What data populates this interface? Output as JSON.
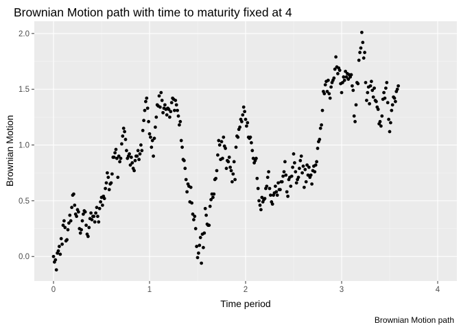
{
  "chart_data": {
    "type": "scatter",
    "title": "Brownian Motion path with time to maturity fixed at 4",
    "xlabel": "Time period",
    "ylabel": "Brownian Motion",
    "caption": "Brownian Motion path",
    "xlim": [
      -0.2,
      4.2
    ],
    "ylim": [
      -0.22,
      2.11
    ],
    "x_ticks": [
      0,
      1,
      2,
      3,
      4
    ],
    "x_tick_labels": [
      "0",
      "1",
      "2",
      "3",
      "4"
    ],
    "y_ticks": [
      0.0,
      0.5,
      1.0,
      1.5,
      2.0
    ],
    "y_tick_labels": [
      "0.0",
      "0.5",
      "1.0",
      "1.5",
      "2.0"
    ],
    "grid": true,
    "colors": {
      "panel_background": "#EBEBEB",
      "grid_major": "#FFFFFF",
      "grid_minor": "#F5F5F5",
      "point": "#000000",
      "tick_label": "#4D4D4D",
      "tick_mark": "#333333"
    },
    "points": [
      [
        0.0,
        0.0
      ],
      [
        0.01,
        -0.05
      ],
      [
        0.02,
        -0.03
      ],
      [
        0.03,
        -0.12
      ],
      [
        0.04,
        0.03
      ],
      [
        0.05,
        0.05
      ],
      [
        0.06,
        0.09
      ],
      [
        0.07,
        0.02
      ],
      [
        0.08,
        0.16
      ],
      [
        0.09,
        0.11
      ],
      [
        0.1,
        0.28
      ],
      [
        0.11,
        0.32
      ],
      [
        0.12,
        0.26
      ],
      [
        0.13,
        0.14
      ],
      [
        0.14,
        0.15
      ],
      [
        0.15,
        0.24
      ],
      [
        0.16,
        0.3
      ],
      [
        0.17,
        0.37
      ],
      [
        0.18,
        0.32
      ],
      [
        0.19,
        0.44
      ],
      [
        0.2,
        0.55
      ],
      [
        0.21,
        0.56
      ],
      [
        0.22,
        0.46
      ],
      [
        0.23,
        0.38
      ],
      [
        0.24,
        0.36
      ],
      [
        0.25,
        0.42
      ],
      [
        0.26,
        0.4
      ],
      [
        0.27,
        0.25
      ],
      [
        0.28,
        0.21
      ],
      [
        0.29,
        0.24
      ],
      [
        0.3,
        0.32
      ],
      [
        0.31,
        0.38
      ],
      [
        0.32,
        0.41
      ],
      [
        0.33,
        0.4
      ],
      [
        0.34,
        0.28
      ],
      [
        0.35,
        0.2
      ],
      [
        0.36,
        0.18
      ],
      [
        0.37,
        0.26
      ],
      [
        0.38,
        0.34
      ],
      [
        0.39,
        0.39
      ],
      [
        0.4,
        0.33
      ],
      [
        0.41,
        0.36
      ],
      [
        0.42,
        0.36
      ],
      [
        0.43,
        0.31
      ],
      [
        0.44,
        0.39
      ],
      [
        0.45,
        0.44
      ],
      [
        0.46,
        0.36
      ],
      [
        0.47,
        0.31
      ],
      [
        0.48,
        0.43
      ],
      [
        0.49,
        0.49
      ],
      [
        0.5,
        0.53
      ],
      [
        0.51,
        0.46
      ],
      [
        0.52,
        0.54
      ],
      [
        0.53,
        0.52
      ],
      [
        0.54,
        0.61
      ],
      [
        0.55,
        0.66
      ],
      [
        0.56,
        0.75
      ],
      [
        0.57,
        0.71
      ],
      [
        0.58,
        0.6
      ],
      [
        0.59,
        0.65
      ],
      [
        0.6,
        0.66
      ],
      [
        0.61,
        0.74
      ],
      [
        0.62,
        0.89
      ],
      [
        0.63,
        0.89
      ],
      [
        0.64,
        0.93
      ],
      [
        0.65,
        0.96
      ],
      [
        0.66,
        0.88
      ],
      [
        0.67,
        0.71
      ],
      [
        0.68,
        0.9
      ],
      [
        0.69,
        0.85
      ],
      [
        0.7,
        0.88
      ],
      [
        0.71,
        1.01
      ],
      [
        0.72,
        1.08
      ],
      [
        0.73,
        1.15
      ],
      [
        0.74,
        1.12
      ],
      [
        0.75,
        1.05
      ],
      [
        0.76,
        0.95
      ],
      [
        0.77,
        0.88
      ],
      [
        0.78,
        0.9
      ],
      [
        0.79,
        0.92
      ],
      [
        0.8,
        0.82
      ],
      [
        0.81,
        0.89
      ],
      [
        0.82,
        0.84
      ],
      [
        0.83,
        0.79
      ],
      [
        0.84,
        0.77
      ],
      [
        0.85,
        0.86
      ],
      [
        0.86,
        0.9
      ],
      [
        0.87,
        0.9
      ],
      [
        0.88,
        0.95
      ],
      [
        0.89,
        0.87
      ],
      [
        0.9,
        0.92
      ],
      [
        0.91,
        1.0
      ],
      [
        0.92,
        0.95
      ],
      [
        0.93,
        1.13
      ],
      [
        0.94,
        1.22
      ],
      [
        0.95,
        1.31
      ],
      [
        0.96,
        1.39
      ],
      [
        0.97,
        1.42
      ],
      [
        0.98,
        1.33
      ],
      [
        0.99,
        1.21
      ],
      [
        1.0,
        1.1
      ],
      [
        1.01,
        1.07
      ],
      [
        1.02,
        0.98
      ],
      [
        1.03,
        1.04
      ],
      [
        1.04,
        0.9
      ],
      [
        1.05,
        1.06
      ],
      [
        1.06,
        1.16
      ],
      [
        1.07,
        1.25
      ],
      [
        1.08,
        1.36
      ],
      [
        1.09,
        1.35
      ],
      [
        1.1,
        1.44
      ],
      [
        1.11,
        1.34
      ],
      [
        1.12,
        1.47
      ],
      [
        1.13,
        1.4
      ],
      [
        1.14,
        1.29
      ],
      [
        1.15,
        1.33
      ],
      [
        1.16,
        1.36
      ],
      [
        1.17,
        1.32
      ],
      [
        1.18,
        1.27
      ],
      [
        1.19,
        1.33
      ],
      [
        1.2,
        1.32
      ],
      [
        1.21,
        1.25
      ],
      [
        1.22,
        1.3
      ],
      [
        1.23,
        1.38
      ],
      [
        1.24,
        1.42
      ],
      [
        1.25,
        1.41
      ],
      [
        1.26,
        1.31
      ],
      [
        1.27,
        1.4
      ],
      [
        1.28,
        1.36
      ],
      [
        1.29,
        1.31
      ],
      [
        1.3,
        1.26
      ],
      [
        1.31,
        1.18
      ],
      [
        1.32,
        1.21
      ],
      [
        1.33,
        1.04
      ],
      [
        1.34,
        0.98
      ],
      [
        1.35,
        0.87
      ],
      [
        1.36,
        0.86
      ],
      [
        1.37,
        0.79
      ],
      [
        1.38,
        0.69
      ],
      [
        1.39,
        0.58
      ],
      [
        1.4,
        0.65
      ],
      [
        1.41,
        0.63
      ],
      [
        1.42,
        0.49
      ],
      [
        1.43,
        0.62
      ],
      [
        1.44,
        0.48
      ],
      [
        1.45,
        0.38
      ],
      [
        1.46,
        0.33
      ],
      [
        1.47,
        0.36
      ],
      [
        1.48,
        0.25
      ],
      [
        1.49,
        0.09
      ],
      [
        1.5,
        -0.01
      ],
      [
        1.51,
        0.03
      ],
      [
        1.52,
        0.1
      ],
      [
        1.53,
        0.17
      ],
      [
        1.54,
        -0.06
      ],
      [
        1.55,
        0.2
      ],
      [
        1.56,
        0.08
      ],
      [
        1.57,
        0.21
      ],
      [
        1.58,
        0.43
      ],
      [
        1.59,
        0.37
      ],
      [
        1.6,
        0.29
      ],
      [
        1.61,
        0.28
      ],
      [
        1.62,
        0.28
      ],
      [
        1.63,
        0.45
      ],
      [
        1.64,
        0.51
      ],
      [
        1.65,
        0.56
      ],
      [
        1.66,
        0.53
      ],
      [
        1.67,
        0.56
      ],
      [
        1.68,
        0.69
      ],
      [
        1.69,
        0.7
      ],
      [
        1.7,
        0.77
      ],
      [
        1.71,
        0.91
      ],
      [
        1.72,
        1.04
      ],
      [
        1.73,
        1.0
      ],
      [
        1.74,
        0.87
      ],
      [
        1.75,
        1.03
      ],
      [
        1.76,
        0.88
      ],
      [
        1.77,
        1.07
      ],
      [
        1.78,
        0.99
      ],
      [
        1.79,
        0.97
      ],
      [
        1.8,
        0.79
      ],
      [
        1.81,
        0.86
      ],
      [
        1.82,
        0.85
      ],
      [
        1.83,
        0.89
      ],
      [
        1.84,
        0.8
      ],
      [
        1.85,
        0.77
      ],
      [
        1.86,
        0.67
      ],
      [
        1.87,
        0.74
      ],
      [
        1.88,
        0.85
      ],
      [
        1.89,
        0.69
      ],
      [
        1.9,
        0.98
      ],
      [
        1.91,
        1.08
      ],
      [
        1.92,
        1.07
      ],
      [
        1.93,
        1.14
      ],
      [
        1.94,
        1.16
      ],
      [
        1.95,
        1.23
      ],
      [
        1.96,
        1.21
      ],
      [
        1.97,
        1.27
      ],
      [
        1.98,
        1.34
      ],
      [
        1.99,
        1.3
      ],
      [
        2.0,
        1.23
      ],
      [
        2.01,
        1.17
      ],
      [
        2.02,
        1.2
      ],
      [
        2.03,
        1.07
      ],
      [
        2.04,
        1.06
      ],
      [
        2.05,
        1.07
      ],
      [
        2.06,
        1.02
      ],
      [
        2.07,
        0.95
      ],
      [
        2.08,
        0.88
      ],
      [
        2.09,
        0.84
      ],
      [
        2.1,
        0.86
      ],
      [
        2.11,
        0.88
      ],
      [
        2.12,
        0.7
      ],
      [
        2.13,
        0.61
      ],
      [
        2.14,
        0.5
      ],
      [
        2.15,
        0.46
      ],
      [
        2.16,
        0.42
      ],
      [
        2.17,
        0.53
      ],
      [
        2.18,
        0.49
      ],
      [
        2.19,
        0.51
      ],
      [
        2.2,
        0.52
      ],
      [
        2.21,
        0.61
      ],
      [
        2.22,
        0.63
      ],
      [
        2.23,
        0.71
      ],
      [
        2.24,
        0.76
      ],
      [
        2.25,
        0.61
      ],
      [
        2.26,
        0.55
      ],
      [
        2.27,
        0.49
      ],
      [
        2.28,
        0.47
      ],
      [
        2.29,
        0.55
      ],
      [
        2.3,
        0.57
      ],
      [
        2.31,
        0.63
      ],
      [
        2.32,
        0.58
      ],
      [
        2.33,
        0.55
      ],
      [
        2.34,
        0.66
      ],
      [
        2.35,
        0.6
      ],
      [
        2.36,
        0.6
      ],
      [
        2.37,
        0.67
      ],
      [
        2.38,
        0.67
      ],
      [
        2.39,
        0.72
      ],
      [
        2.4,
        0.76
      ],
      [
        2.41,
        0.85
      ],
      [
        2.42,
        0.73
      ],
      [
        2.43,
        0.58
      ],
      [
        2.44,
        0.54
      ],
      [
        2.45,
        0.69
      ],
      [
        2.46,
        0.71
      ],
      [
        2.47,
        0.63
      ],
      [
        2.48,
        0.72
      ],
      [
        2.49,
        0.8
      ],
      [
        2.5,
        0.92
      ],
      [
        2.51,
        0.84
      ],
      [
        2.52,
        0.76
      ],
      [
        2.53,
        0.66
      ],
      [
        2.54,
        0.69
      ],
      [
        2.55,
        0.71
      ],
      [
        2.56,
        0.79
      ],
      [
        2.57,
        0.86
      ],
      [
        2.58,
        0.9
      ],
      [
        2.59,
        0.75
      ],
      [
        2.6,
        0.81
      ],
      [
        2.61,
        0.62
      ],
      [
        2.62,
        0.78
      ],
      [
        2.63,
        0.67
      ],
      [
        2.64,
        0.82
      ],
      [
        2.65,
        0.73
      ],
      [
        2.66,
        0.8
      ],
      [
        2.67,
        0.71
      ],
      [
        2.68,
        0.73
      ],
      [
        2.69,
        0.65
      ],
      [
        2.7,
        0.77
      ],
      [
        2.71,
        0.81
      ],
      [
        2.72,
        0.76
      ],
      [
        2.73,
        0.82
      ],
      [
        2.74,
        0.85
      ],
      [
        2.75,
        0.97
      ],
      [
        2.76,
        1.03
      ],
      [
        2.77,
        1.05
      ],
      [
        2.78,
        1.15
      ],
      [
        2.79,
        1.18
      ],
      [
        2.8,
        1.31
      ],
      [
        2.81,
        1.48
      ],
      [
        2.82,
        1.46
      ],
      [
        2.83,
        1.54
      ],
      [
        2.84,
        1.57
      ],
      [
        2.85,
        1.48
      ],
      [
        2.86,
        1.58
      ],
      [
        2.87,
        1.46
      ],
      [
        2.88,
        1.42
      ],
      [
        2.89,
        1.52
      ],
      [
        2.9,
        1.56
      ],
      [
        2.91,
        1.58
      ],
      [
        2.92,
        1.6
      ],
      [
        2.93,
        1.68
      ],
      [
        2.94,
        1.79
      ],
      [
        2.95,
        1.7
      ],
      [
        2.96,
        1.64
      ],
      [
        2.97,
        1.69
      ],
      [
        2.98,
        1.67
      ],
      [
        2.99,
        1.55
      ],
      [
        3.0,
        1.47
      ],
      [
        3.01,
        1.56
      ],
      [
        3.02,
        1.61
      ],
      [
        3.03,
        1.58
      ],
      [
        3.04,
        1.66
      ],
      [
        3.05,
        1.61
      ],
      [
        3.06,
        1.64
      ],
      [
        3.07,
        1.59
      ],
      [
        3.08,
        1.63
      ],
      [
        3.09,
        1.61
      ],
      [
        3.1,
        1.63
      ],
      [
        3.11,
        1.53
      ],
      [
        3.12,
        1.49
      ],
      [
        3.13,
        1.26
      ],
      [
        3.14,
        1.21
      ],
      [
        3.15,
        1.36
      ],
      [
        3.16,
        1.56
      ],
      [
        3.17,
        1.55
      ],
      [
        3.18,
        1.76
      ],
      [
        3.19,
        1.83
      ],
      [
        3.2,
        1.87
      ],
      [
        3.21,
        2.01
      ],
      [
        3.22,
        1.92
      ],
      [
        3.23,
        1.78
      ],
      [
        3.24,
        1.83
      ],
      [
        3.25,
        1.56
      ],
      [
        3.26,
        1.4
      ],
      [
        3.27,
        1.47
      ],
      [
        3.28,
        1.52
      ],
      [
        3.29,
        1.37
      ],
      [
        3.3,
        1.53
      ],
      [
        3.31,
        1.57
      ],
      [
        3.32,
        1.49
      ],
      [
        3.33,
        1.43
      ],
      [
        3.34,
        1.51
      ],
      [
        3.35,
        1.4
      ],
      [
        3.36,
        1.39
      ],
      [
        3.37,
        1.34
      ],
      [
        3.38,
        1.32
      ],
      [
        3.39,
        1.19
      ],
      [
        3.4,
        1.21
      ],
      [
        3.41,
        1.17
      ],
      [
        3.42,
        1.26
      ],
      [
        3.43,
        1.41
      ],
      [
        3.44,
        1.47
      ],
      [
        3.45,
        1.42
      ],
      [
        3.46,
        1.51
      ],
      [
        3.47,
        1.56
      ],
      [
        3.48,
        1.38
      ],
      [
        3.49,
        1.23
      ],
      [
        3.5,
        1.12
      ],
      [
        3.51,
        1.2
      ],
      [
        3.52,
        1.31
      ],
      [
        3.53,
        1.36
      ],
      [
        3.54,
        1.43
      ],
      [
        3.55,
        1.42
      ],
      [
        3.56,
        1.39
      ],
      [
        3.57,
        1.48
      ],
      [
        3.58,
        1.5
      ],
      [
        3.59,
        1.53
      ]
    ]
  }
}
